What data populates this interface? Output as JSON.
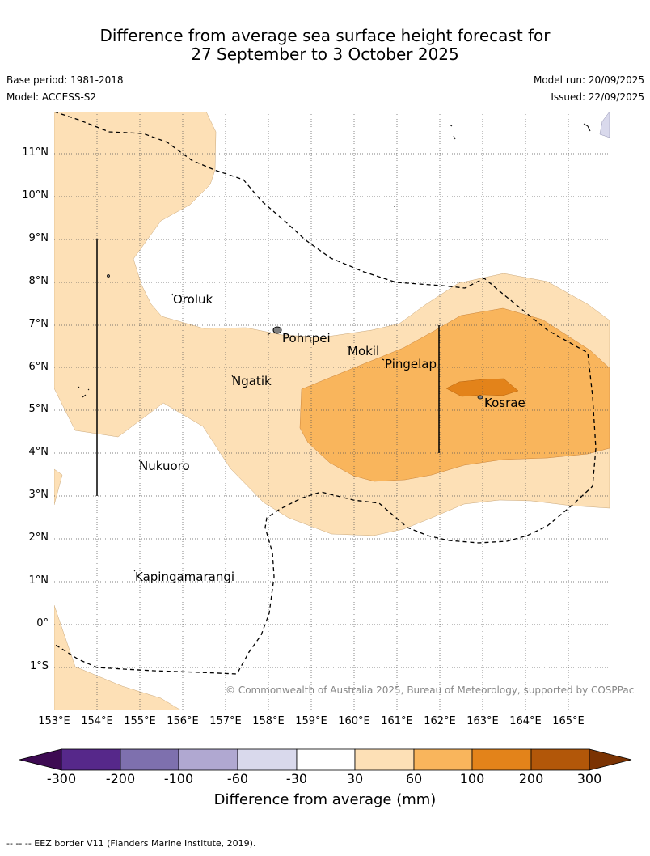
{
  "title": {
    "line1": "Difference from average sea surface height forecast for",
    "line2": "27 September to 3 October 2025"
  },
  "meta": {
    "base_period": "Base period: 1981-2018",
    "model": "Model: ACCESS-S2",
    "model_run": "Model run: 20/09/2025",
    "issued": "Issued: 22/09/2025"
  },
  "map": {
    "latitude_labels": [
      "11°N",
      "10°N",
      "9°N",
      "8°N",
      "7°N",
      "6°N",
      "5°N",
      "4°N",
      "3°N",
      "2°N",
      "1°N",
      "0°",
      "1°S"
    ],
    "longitude_labels": [
      "153°E",
      "154°E",
      "155°E",
      "156°E",
      "157°E",
      "158°E",
      "159°E",
      "160°E",
      "161°E",
      "162°E",
      "163°E",
      "164°E",
      "165°E"
    ],
    "places": [
      "Oroluk",
      "Pohnpei",
      "Mokil",
      "Pingelap",
      "Ngatik",
      "Kosrae",
      "Nukuoro",
      "Kapingamarangi"
    ],
    "credit": "© Commonwealth of Australia 2025, Bureau of Meteorology, supported by COSPPac",
    "colors": {
      "band_30_60": "#fde0b6",
      "band_60_100": "#f9b55c",
      "band_100_200": "#e3831a",
      "land": "#808080",
      "grid": "#555555"
    }
  },
  "colorbar": {
    "tick_labels": [
      "-300",
      "-200",
      "-100",
      "-60",
      "-30",
      "30",
      "60",
      "100",
      "200",
      "300"
    ],
    "colors": [
      "#3d0a52",
      "#56288a",
      "#7e70ae",
      "#b0a8d1",
      "#d9d9ec",
      "#ffffff",
      "#fde0b6",
      "#f9b55c",
      "#e3831a",
      "#b25709",
      "#7b3303"
    ],
    "title": "Difference from average (mm)"
  },
  "footnote": "--  --  -- EEZ border V11 (Flanders Marine Institute, 2019)."
}
